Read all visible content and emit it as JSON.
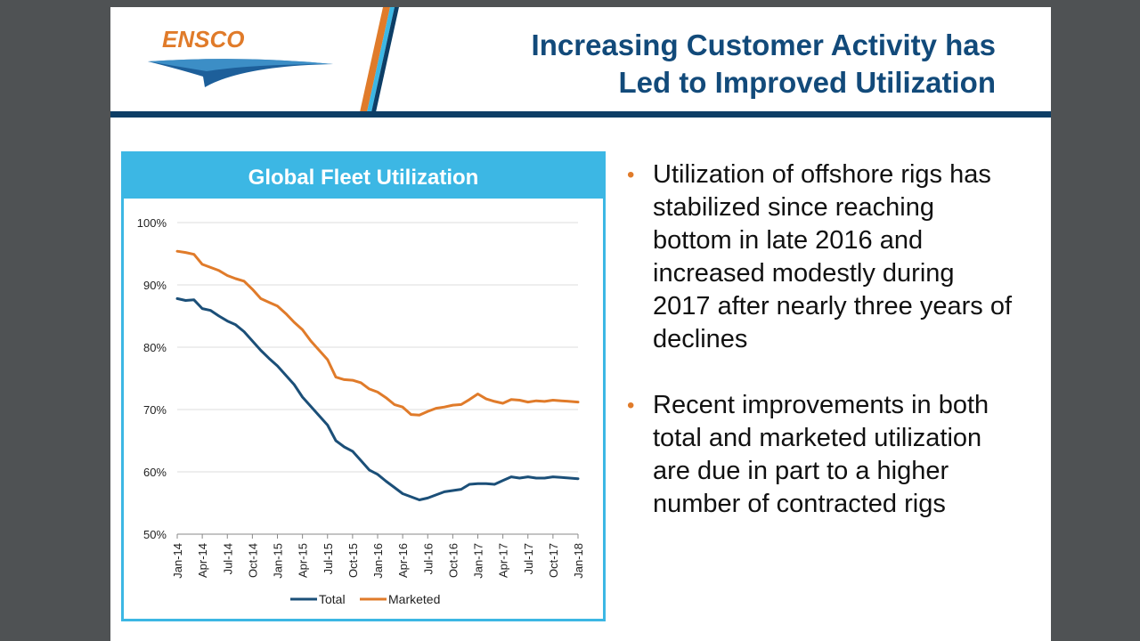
{
  "header": {
    "title_line1": "Increasing Customer Activity has",
    "title_line2": "Led to Improved Utilization",
    "logo_text": "ENSCO"
  },
  "colors": {
    "navy": "#0d3e66",
    "title_blue": "#124a7a",
    "panel_blue": "#3cb7e4",
    "orange": "#e07b2a",
    "total_line": "#1b4f78",
    "marketed_line": "#e07b2a"
  },
  "bullets": [
    "Utilization of offshore rigs has stabilized since reaching bottom in late 2016 and increased modestly during 2017 after nearly three years of declines",
    "Recent improvements in both total and marketed utilization are due in part to a higher number of contracted rigs"
  ],
  "chart_data": {
    "type": "line",
    "title": "Global Fleet Utilization",
    "xlabel": "",
    "ylabel": "",
    "ylim": [
      50,
      100
    ],
    "yticks": [
      50,
      60,
      70,
      80,
      90,
      100
    ],
    "ytick_labels": [
      "50%",
      "60%",
      "70%",
      "80%",
      "90%",
      "100%"
    ],
    "tick_labels": [
      "Jan-14",
      "Apr-14",
      "Jul-14",
      "Oct-14",
      "Jan-15",
      "Apr-15",
      "Jul-15",
      "Oct-15",
      "Jan-16",
      "Apr-16",
      "Jul-16",
      "Oct-16",
      "Jan-17",
      "Apr-17",
      "Jul-17",
      "Oct-17",
      "Jan-18"
    ],
    "grid": true,
    "legend": "bottom-center",
    "x_months": [
      0,
      1,
      2,
      3,
      4,
      5,
      6,
      7,
      8,
      9,
      10,
      11,
      12,
      13,
      14,
      15,
      16,
      17,
      18,
      19,
      20,
      21,
      22,
      23,
      24,
      25,
      26,
      27,
      28,
      29,
      30,
      31,
      32,
      33,
      34,
      35,
      36,
      37,
      38,
      39,
      40,
      41,
      42,
      43,
      44,
      45,
      46,
      47,
      48
    ],
    "series": [
      {
        "name": "Total",
        "values": [
          87.8,
          87.5,
          87.6,
          86.2,
          85.9,
          85.0,
          84.2,
          83.6,
          82.5,
          81.0,
          79.5,
          78.2,
          77.0,
          75.5,
          74.0,
          72.0,
          70.5,
          69.0,
          67.5,
          65.0,
          64.0,
          63.3,
          61.8,
          60.3,
          59.6,
          58.5,
          57.5,
          56.5,
          56.0,
          55.5,
          55.8,
          56.3,
          56.8,
          57.0,
          57.2,
          58.0,
          58.1,
          58.1,
          58.0,
          58.6,
          59.2,
          59.0,
          59.2,
          59.0,
          59.0,
          59.2,
          59.1,
          59.0,
          58.9
        ]
      },
      {
        "name": "Marketed",
        "values": [
          95.4,
          95.2,
          94.9,
          93.3,
          92.8,
          92.3,
          91.5,
          91.0,
          90.6,
          89.3,
          87.8,
          87.2,
          86.6,
          85.4,
          84.0,
          82.8,
          81.0,
          79.5,
          78.0,
          75.2,
          74.8,
          74.7,
          74.3,
          73.3,
          72.8,
          71.9,
          70.8,
          70.4,
          69.2,
          69.1,
          69.7,
          70.2,
          70.4,
          70.7,
          70.8,
          71.6,
          72.5,
          71.7,
          71.3,
          71.0,
          71.6,
          71.5,
          71.2,
          71.4,
          71.3,
          71.5,
          71.4,
          71.3,
          71.2
        ]
      }
    ]
  }
}
